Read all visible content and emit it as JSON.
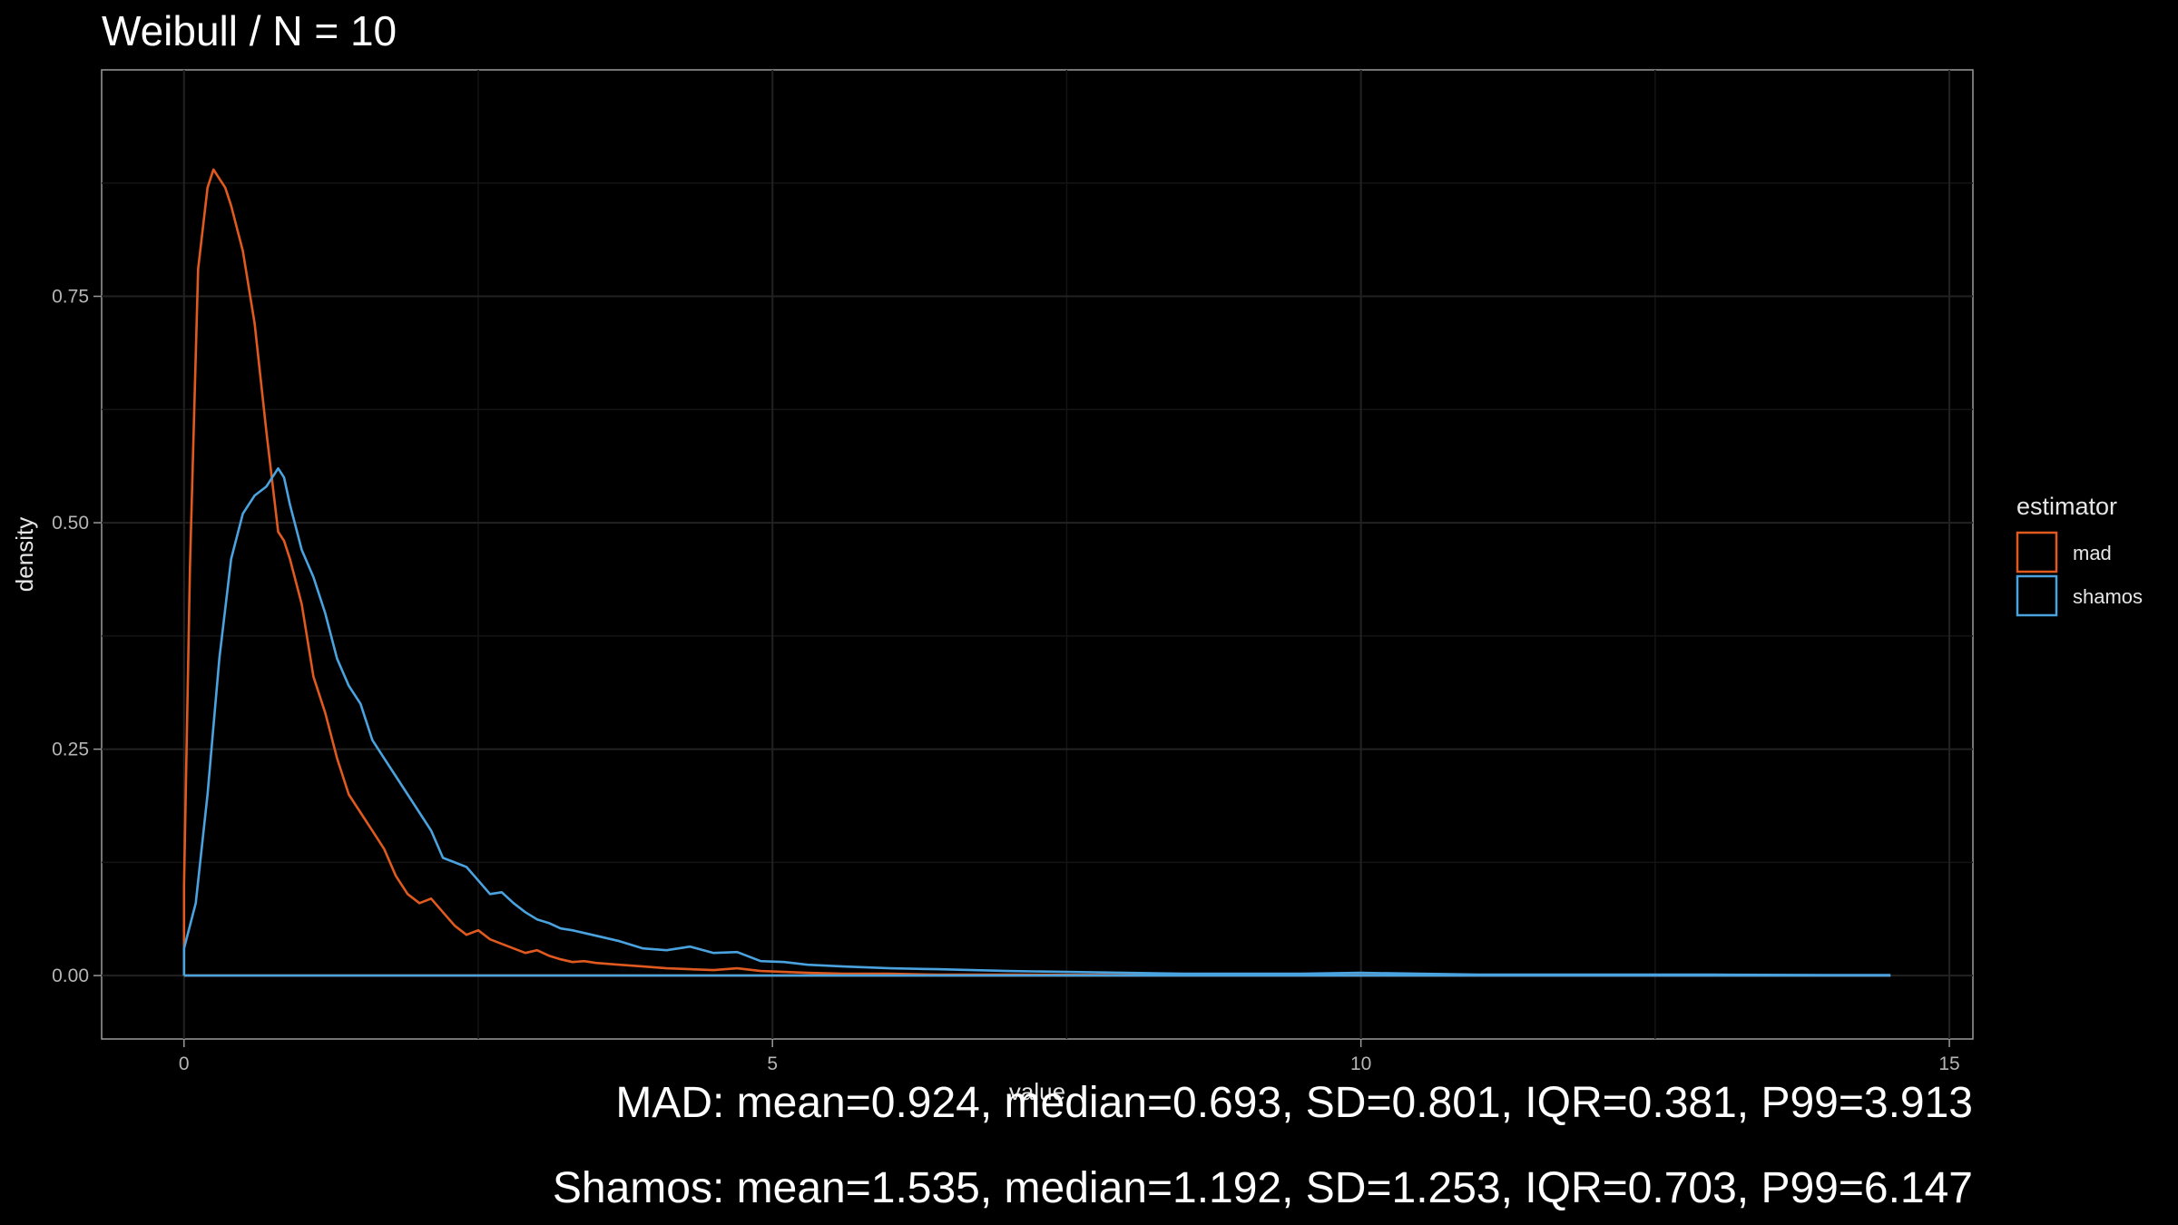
{
  "chart_data": {
    "type": "line",
    "title": "Weibull / N = 10",
    "xlabel": "value",
    "ylabel": "density",
    "xlim": [
      -0.7,
      15.2
    ],
    "ylim": [
      -0.07,
      1.0
    ],
    "xticks": [
      0,
      5,
      10,
      15
    ],
    "xtick_labels": [
      "0",
      "5",
      "10",
      "15"
    ],
    "yticks": [
      0.0,
      0.25,
      0.5,
      0.75
    ],
    "ytick_labels": [
      "0.00",
      "0.25",
      "0.50",
      "0.75"
    ],
    "grid": true,
    "legend": {
      "title": "estimator",
      "position": "right"
    },
    "series": [
      {
        "name": "mad",
        "color": "#e05a1f",
        "x": [
          0.0,
          0.05,
          0.12,
          0.2,
          0.25,
          0.3,
          0.35,
          0.4,
          0.5,
          0.6,
          0.7,
          0.8,
          0.85,
          0.9,
          1.0,
          1.1,
          1.2,
          1.3,
          1.4,
          1.5,
          1.6,
          1.7,
          1.8,
          1.9,
          2.0,
          2.1,
          2.2,
          2.3,
          2.4,
          2.5,
          2.6,
          2.7,
          2.8,
          2.9,
          3.0,
          3.1,
          3.2,
          3.3,
          3.4,
          3.5,
          3.7,
          3.9,
          4.1,
          4.3,
          4.5,
          4.7,
          4.9,
          5.1,
          5.3,
          5.6,
          6.0,
          6.4,
          7.0,
          8.0,
          9.0,
          10.0,
          11.0,
          12.0,
          13.0,
          14.0,
          14.5
        ],
        "values": [
          0.1,
          0.45,
          0.78,
          0.87,
          0.89,
          0.88,
          0.87,
          0.85,
          0.8,
          0.72,
          0.6,
          0.49,
          0.48,
          0.46,
          0.41,
          0.33,
          0.29,
          0.24,
          0.2,
          0.18,
          0.16,
          0.14,
          0.11,
          0.09,
          0.08,
          0.085,
          0.07,
          0.055,
          0.045,
          0.05,
          0.04,
          0.035,
          0.03,
          0.025,
          0.028,
          0.022,
          0.018,
          0.015,
          0.016,
          0.014,
          0.012,
          0.01,
          0.008,
          0.007,
          0.006,
          0.008,
          0.005,
          0.004,
          0.003,
          0.002,
          0.002,
          0.001,
          0.001,
          0.0005,
          0.0003,
          0.0002,
          0.0001,
          0.0001,
          0.0,
          0.0,
          0.0
        ]
      },
      {
        "name": "shamos",
        "color": "#4aa3df",
        "x": [
          0.0,
          0.1,
          0.2,
          0.3,
          0.4,
          0.5,
          0.6,
          0.7,
          0.75,
          0.8,
          0.85,
          0.9,
          1.0,
          1.1,
          1.2,
          1.3,
          1.4,
          1.5,
          1.6,
          1.7,
          1.8,
          1.9,
          2.0,
          2.1,
          2.2,
          2.3,
          2.4,
          2.5,
          2.6,
          2.7,
          2.8,
          2.9,
          3.0,
          3.1,
          3.2,
          3.3,
          3.4,
          3.5,
          3.7,
          3.9,
          4.1,
          4.3,
          4.5,
          4.7,
          4.9,
          5.1,
          5.3,
          5.6,
          6.0,
          6.4,
          7.0,
          7.5,
          8.0,
          8.5,
          9.0,
          9.5,
          10.0,
          11.0,
          12.0,
          13.0,
          14.0,
          14.5
        ],
        "values": [
          0.03,
          0.08,
          0.2,
          0.35,
          0.46,
          0.51,
          0.53,
          0.54,
          0.55,
          0.56,
          0.55,
          0.52,
          0.47,
          0.44,
          0.4,
          0.35,
          0.32,
          0.3,
          0.26,
          0.24,
          0.22,
          0.2,
          0.18,
          0.16,
          0.13,
          0.125,
          0.12,
          0.105,
          0.09,
          0.092,
          0.08,
          0.07,
          0.062,
          0.058,
          0.052,
          0.05,
          0.047,
          0.044,
          0.038,
          0.03,
          0.028,
          0.032,
          0.025,
          0.026,
          0.016,
          0.015,
          0.012,
          0.01,
          0.008,
          0.007,
          0.005,
          0.004,
          0.003,
          0.002,
          0.002,
          0.002,
          0.003,
          0.001,
          0.001,
          0.001,
          0.0005,
          0.0005
        ]
      }
    ]
  },
  "captions": {
    "line1": "MAD: mean=0.924, median=0.693, SD=0.801, IQR=0.381, P99=3.913",
    "line2": "Shamos: mean=1.535, median=1.192, SD=1.253, IQR=0.703, P99=6.147"
  }
}
